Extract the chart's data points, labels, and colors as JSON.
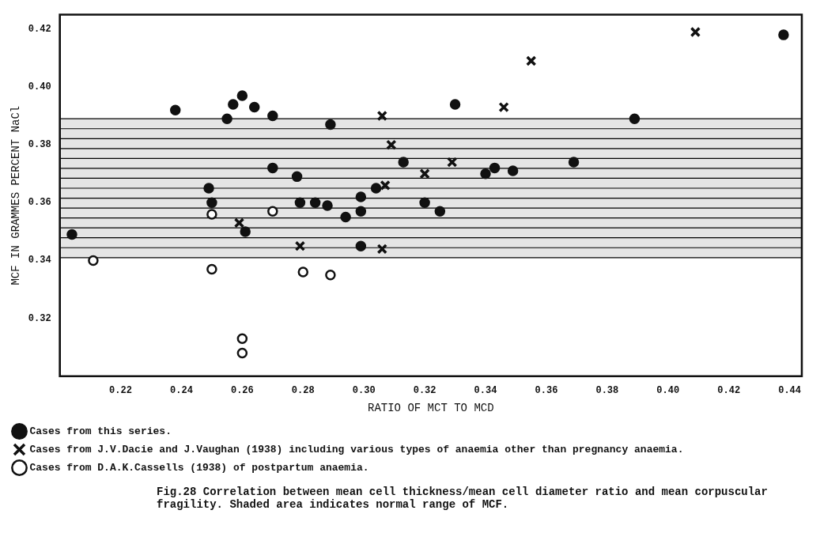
{
  "chart_data": {
    "type": "scatter",
    "xlabel": "RATIO OF MCT TO MCD",
    "ylabel": "MCF IN GRAMMES PERCENT NaCl",
    "xlim": [
      0.2,
      0.444
    ],
    "ylim": [
      0.3,
      0.425
    ],
    "xticks": [
      0.22,
      0.24,
      0.26,
      0.28,
      {
        "value": 0.3,
        "label": "0.30"
      },
      0.32,
      0.34,
      0.36,
      0.38,
      {
        "value": 0.4,
        "label": "0.40"
      },
      0.42,
      0.44
    ],
    "yticks": [
      0.32,
      0.34,
      0.36,
      0.38,
      {
        "value": 0.4,
        "label": "0.40"
      },
      0.42
    ],
    "grid": false,
    "legend": "bottom",
    "bands": [
      {
        "axis": "y",
        "from": 0.341,
        "to": 0.389,
        "color": "#000000"
      }
    ],
    "series": [
      {
        "name": "Cases from this series.",
        "color": "#111111",
        "marker": "circle",
        "x": [
          0.204,
          0.238,
          0.255,
          0.257,
          0.26,
          0.264,
          0.27,
          0.27,
          0.249,
          0.25,
          0.261,
          0.289,
          0.33,
          0.313,
          0.278,
          0.304,
          0.299,
          0.279,
          0.284,
          0.288,
          0.294,
          0.299,
          0.32,
          0.325,
          0.299,
          0.34,
          0.343,
          0.349,
          0.389,
          0.369,
          0.438
        ],
        "values": [
          0.349,
          0.392,
          0.389,
          0.394,
          0.397,
          0.393,
          0.39,
          0.372,
          0.365,
          0.36,
          0.35,
          0.387,
          0.394,
          0.374,
          0.369,
          0.365,
          0.362,
          0.36,
          0.36,
          0.359,
          0.355,
          0.357,
          0.36,
          0.357,
          0.345,
          0.37,
          0.372,
          0.371,
          0.389,
          0.374,
          0.418
        ]
      },
      {
        "name": "Cases from J.V.Dacie and J.Vaughan (1938) including various types of anaemia other than pregnancy anaemia.",
        "color": "#111111",
        "marker": "cross",
        "x": [
          0.259,
          0.306,
          0.309,
          0.329,
          0.32,
          0.307,
          0.279,
          0.306,
          0.346,
          0.355,
          0.409
        ],
        "values": [
          0.353,
          0.39,
          0.38,
          0.374,
          0.37,
          0.366,
          0.345,
          0.344,
          0.393,
          0.409,
          0.419
        ]
      },
      {
        "name": "Cases from D.A.K.Cassells (1938) of postpartum anaemia.",
        "color": "#111111",
        "marker": "circle",
        "x": [
          0.211,
          0.25,
          0.25,
          0.27,
          0.26,
          0.26,
          0.28,
          0.289
        ],
        "values": [
          0.34,
          0.356,
          0.337,
          0.357,
          0.313,
          0.308,
          0.336,
          0.335
        ]
      }
    ],
    "annotations": [
      "Fig.28 Correlation between mean cell thickness/mean cell diameter ratio and mean corpuscular fragility. Shaded area indicates normal range of MCF."
    ]
  }
}
